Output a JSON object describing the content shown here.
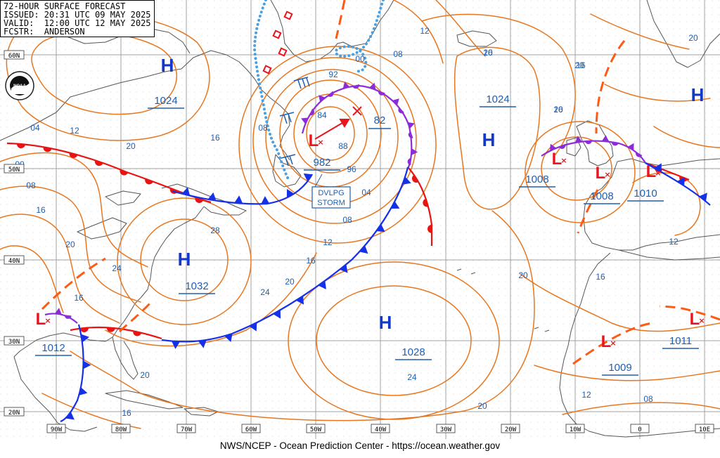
{
  "header": {
    "title": "72-HOUR SURFACE FORECAST",
    "issued": "ISSUED: 20:31 UTC 09 MAY 2025",
    "valid": "VALID:  12:00 UTC 12 MAY 2025",
    "forecaster": "FCSTR:  ANDERSON"
  },
  "logo": "NOAA",
  "footer": "NWS/NCEP - Ocean Prediction Center - https://ocean.weather.gov",
  "lon_labels": [
    "90W",
    "80W",
    "70W",
    "60W",
    "50W",
    "40W",
    "30W",
    "20W",
    "10W",
    "0",
    "10E"
  ],
  "lat_labels": [
    "60N",
    "50N",
    "40N",
    "30N",
    "20N"
  ],
  "storm_label": [
    "DVLPG",
    "STORM"
  ],
  "pressure_centers": [
    {
      "type": "H",
      "value": "1024"
    },
    {
      "type": "H",
      "value": "1032"
    },
    {
      "type": "H",
      "value": "1028"
    },
    {
      "type": "H",
      "value": "1024"
    },
    {
      "type": "H",
      "value": ""
    },
    {
      "type": "L",
      "value": "982"
    },
    {
      "type": "L",
      "value": "1012"
    },
    {
      "type": "L",
      "value": "1008"
    },
    {
      "type": "L",
      "value": "1008"
    },
    {
      "type": "L",
      "value": "1010"
    },
    {
      "type": "L",
      "value": "1011"
    },
    {
      "type": "L",
      "value": "1009"
    }
  ],
  "secondary_pressure": "82",
  "isobar_labels": [
    "04",
    "12",
    "20",
    "00",
    "08",
    "16",
    "20",
    "24",
    "16",
    "08",
    "16",
    "28",
    "84",
    "88",
    "92",
    "96",
    "04",
    "08",
    "12",
    "16",
    "20",
    "24",
    "20",
    "12",
    "16",
    "08",
    "00",
    "20",
    "16",
    "20",
    "16",
    "20",
    "16",
    "12",
    "24",
    "20",
    "20",
    "16",
    "12",
    "08",
    "20"
  ],
  "colors": {
    "isobar": "#e8761e",
    "coast": "#4a4a4a",
    "grid": "#9a9a9a",
    "label": "#1f5fb0",
    "high": "#1438c8",
    "low": "#e8141e",
    "cold_front": "#1430e8",
    "warm_front": "#e81414",
    "occluded_front": "#8c2cd8",
    "trough": "#ff5a14",
    "ice": "#4aa0e0"
  }
}
